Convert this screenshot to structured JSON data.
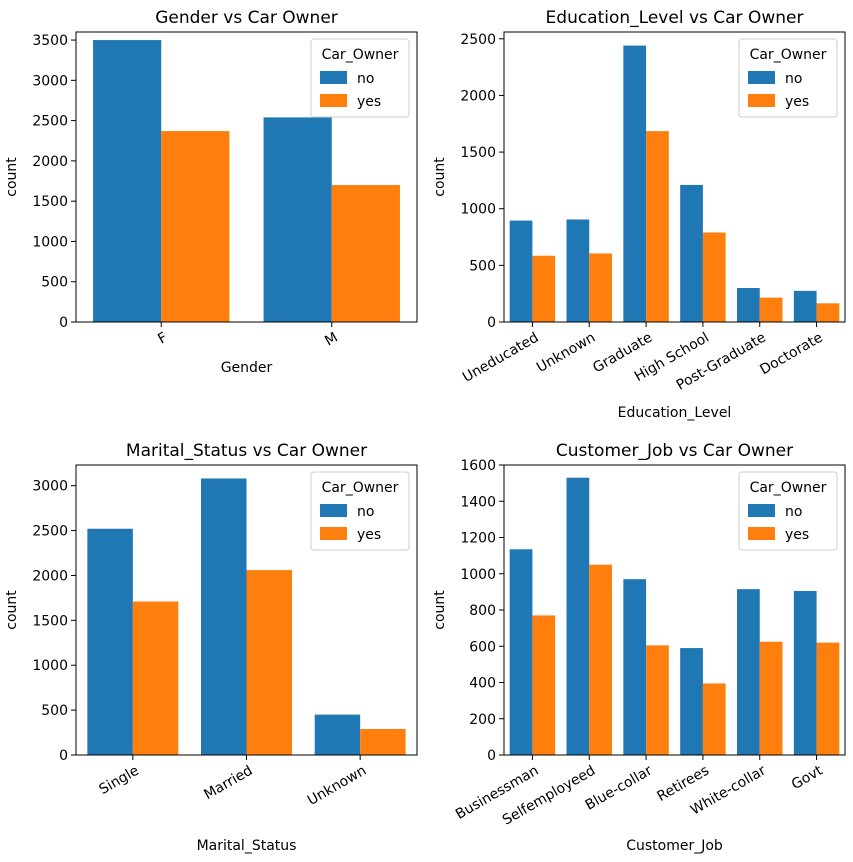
{
  "colors": {
    "no": "#1f77b4",
    "yes": "#ff7f0e"
  },
  "chart_data": [
    {
      "type": "bar",
      "title": "Gender vs Car Owner",
      "xlabel": "Gender",
      "ylabel": "count",
      "categories": [
        "F",
        "M"
      ],
      "series": [
        {
          "name": "no",
          "values": [
            3500,
            2540
          ]
        },
        {
          "name": "yes",
          "values": [
            2370,
            1700
          ]
        }
      ],
      "ylim": [
        0,
        3600
      ],
      "yticks": [
        0,
        500,
        1000,
        1500,
        2000,
        2500,
        3000,
        3500
      ],
      "tick_rotation": -30,
      "legend_title": "Car_Owner",
      "legend": "top-right",
      "grid": false
    },
    {
      "type": "bar",
      "title": "Education_Level vs Car Owner",
      "xlabel": "Education_Level",
      "ylabel": "count",
      "categories": [
        "Uneducated",
        "Unknown",
        "Graduate",
        "High School",
        "Post-Graduate",
        "Doctorate"
      ],
      "series": [
        {
          "name": "no",
          "values": [
            895,
            905,
            2440,
            1210,
            300,
            275
          ]
        },
        {
          "name": "yes",
          "values": [
            585,
            605,
            1685,
            790,
            215,
            165
          ]
        }
      ],
      "ylim": [
        0,
        2560
      ],
      "yticks": [
        0,
        500,
        1000,
        1500,
        2000,
        2500
      ],
      "tick_rotation": -30,
      "legend_title": "Car_Owner",
      "legend": "top-right",
      "grid": false
    },
    {
      "type": "bar",
      "title": "Marital_Status vs Car Owner",
      "xlabel": "Marital_Status",
      "ylabel": "count",
      "categories": [
        "Single",
        "Married",
        "Unknown"
      ],
      "series": [
        {
          "name": "no",
          "values": [
            2520,
            3080,
            450
          ]
        },
        {
          "name": "yes",
          "values": [
            1710,
            2060,
            290
          ]
        }
      ],
      "ylim": [
        0,
        3230
      ],
      "yticks": [
        0,
        500,
        1000,
        1500,
        2000,
        2500,
        3000
      ],
      "tick_rotation": -30,
      "legend_title": "Car_Owner",
      "legend": "top-right",
      "grid": false
    },
    {
      "type": "bar",
      "title": "Customer_Job vs Car Owner",
      "xlabel": "Customer_Job",
      "ylabel": "count",
      "categories": [
        "Businessman",
        "Selfemployeed",
        "Blue-collar",
        "Retirees",
        "White-collar",
        "Govt"
      ],
      "series": [
        {
          "name": "no",
          "values": [
            1135,
            1530,
            970,
            590,
            915,
            905
          ]
        },
        {
          "name": "yes",
          "values": [
            770,
            1050,
            605,
            395,
            625,
            620
          ]
        }
      ],
      "ylim": [
        0,
        1600
      ],
      "yticks": [
        0,
        200,
        400,
        600,
        800,
        1000,
        1200,
        1400,
        1600
      ],
      "tick_rotation": -30,
      "legend_title": "Car_Owner",
      "legend": "top-right",
      "grid": false
    }
  ]
}
